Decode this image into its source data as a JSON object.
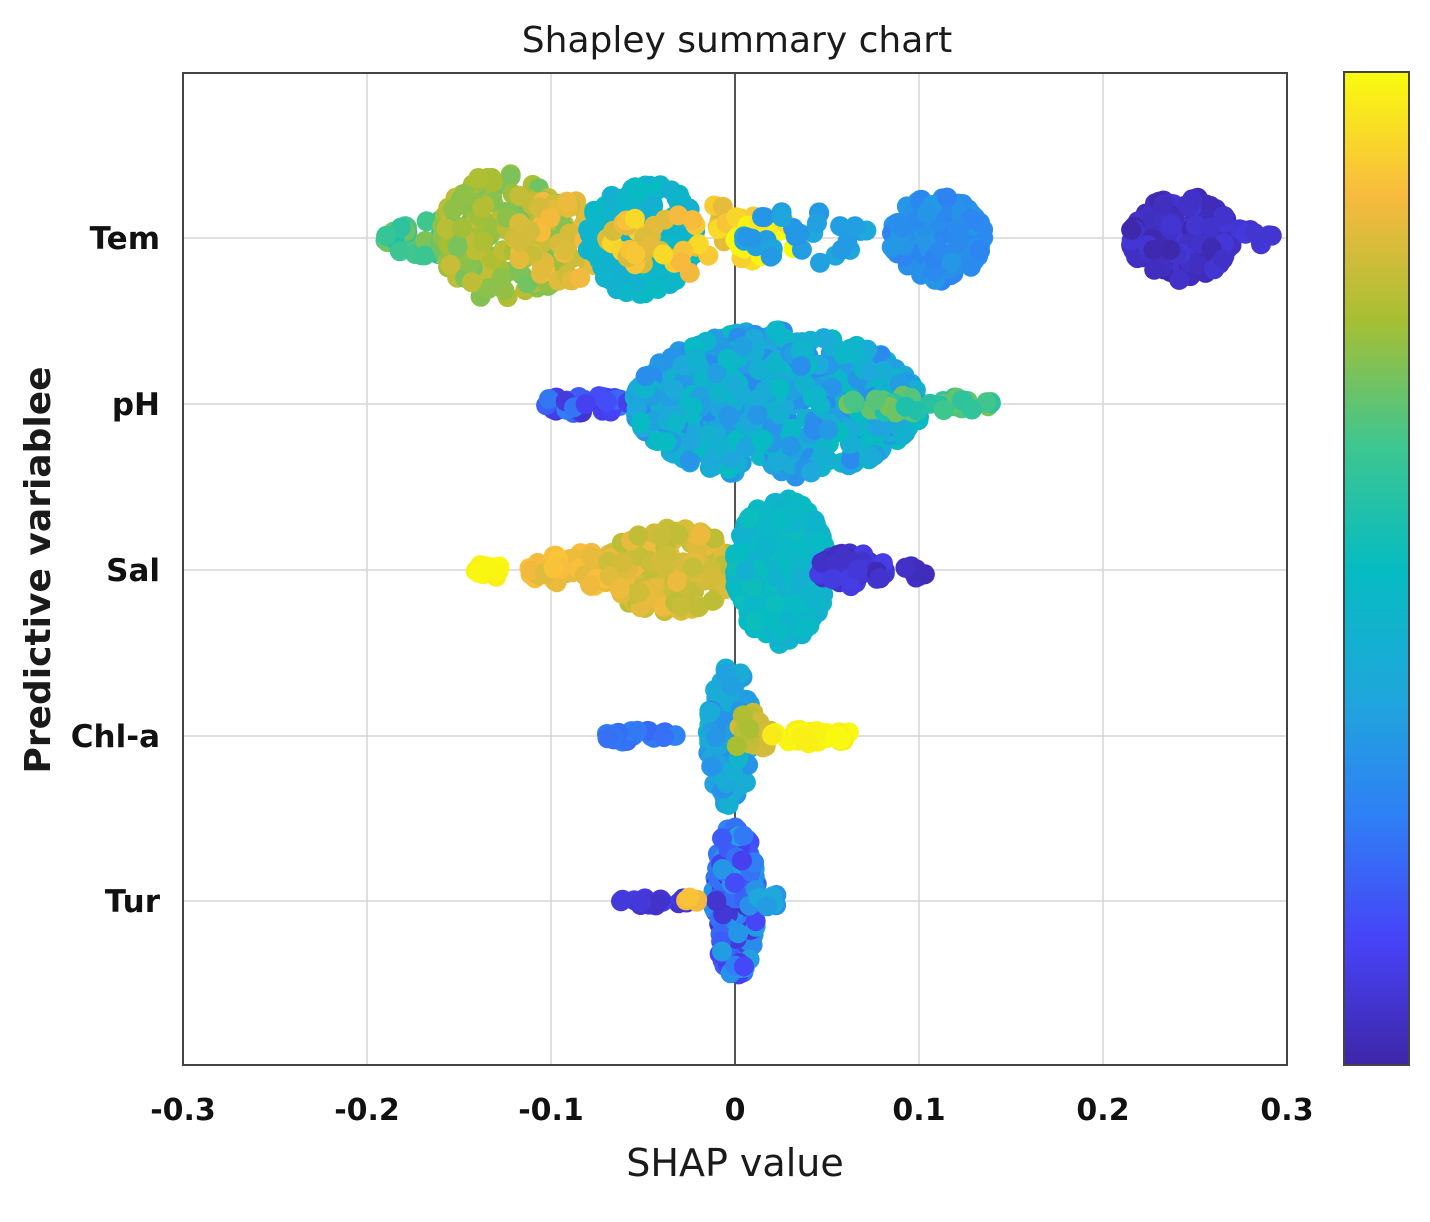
{
  "chart_data": {
    "type": "scatter",
    "subtype": "shap-beeswarm",
    "title": "Shapley summary chart",
    "xlabel": "SHAP value",
    "ylabel": "Predictive variablee",
    "xlim": [
      -0.3,
      0.3
    ],
    "xticks": [
      -0.3,
      -0.2,
      -0.1,
      0,
      0.1,
      0.2,
      0.3
    ],
    "xtick_labels": [
      "-0.3",
      "-0.2",
      "-0.1",
      "0",
      "0.1",
      "0.2",
      "0.3"
    ],
    "grid": true,
    "colorbar": {
      "colormap": "parula",
      "min_color": "#3e26a8",
      "max_color": "#f9fb0e",
      "tick_labels": []
    },
    "categories": [
      "Tem",
      "pH",
      "Sal",
      "Chl-a",
      "Tur"
    ],
    "series": [
      {
        "name": "Tem",
        "clusters": [
          {
            "x": [
              -0.19,
              -0.14
            ],
            "spread": 0.25,
            "n": 40,
            "c": [
              0.55,
              0.72
            ]
          },
          {
            "x": [
              -0.16,
              -0.09
            ],
            "spread": 0.85,
            "n": 190,
            "c": [
              0.68,
              0.8
            ]
          },
          {
            "x": [
              -0.12,
              -0.07
            ],
            "spread": 0.6,
            "n": 60,
            "c": [
              0.8,
              0.88
            ]
          },
          {
            "x": [
              -0.08,
              -0.02
            ],
            "spread": 0.75,
            "n": 170,
            "c": [
              0.42,
              0.5
            ]
          },
          {
            "x": [
              -0.07,
              0.02
            ],
            "spread": 0.45,
            "n": 70,
            "c": [
              0.82,
              0.95
            ]
          },
          {
            "x": [
              0.0,
              0.035
            ],
            "spread": 0.25,
            "n": 30,
            "c": [
              0.95,
              1.0
            ]
          },
          {
            "x": [
              0.0,
              0.075
            ],
            "spread": 0.35,
            "n": 30,
            "c": [
              0.32,
              0.38
            ]
          },
          {
            "x": [
              0.085,
              0.135
            ],
            "spread": 0.55,
            "n": 150,
            "c": [
              0.26,
              0.33
            ]
          },
          {
            "x": [
              0.215,
              0.27
            ],
            "spread": 0.55,
            "n": 150,
            "c": [
              0.0,
              0.08
            ]
          },
          {
            "x": [
              0.27,
              0.292
            ],
            "spread": 0.15,
            "n": 8,
            "c": [
              0.05,
              0.1
            ]
          }
        ]
      },
      {
        "name": "pH",
        "clusters": [
          {
            "x": [
              -0.105,
              -0.055
            ],
            "spread": 0.12,
            "n": 40,
            "c": [
              0.05,
              0.25
            ]
          },
          {
            "x": [
              -0.055,
              0.1
            ],
            "spread": 0.95,
            "n": 700,
            "c": [
              0.28,
              0.5
            ]
          },
          {
            "x": [
              0.06,
              0.14
            ],
            "spread": 0.12,
            "n": 45,
            "c": [
              0.55,
              0.7
            ]
          }
        ]
      },
      {
        "name": "Sal",
        "clusters": [
          {
            "x": [
              -0.142,
              -0.125
            ],
            "spread": 0.1,
            "n": 10,
            "c": [
              0.97,
              1.0
            ]
          },
          {
            "x": [
              -0.112,
              -0.04
            ],
            "spread": 0.25,
            "n": 80,
            "c": [
              0.84,
              0.9
            ]
          },
          {
            "x": [
              -0.07,
              0.0
            ],
            "spread": 0.55,
            "n": 150,
            "c": [
              0.78,
              0.86
            ]
          },
          {
            "x": [
              0.0,
              0.05
            ],
            "spread": 0.95,
            "n": 320,
            "c": [
              0.42,
              0.52
            ]
          },
          {
            "x": [
              0.045,
              0.082
            ],
            "spread": 0.22,
            "n": 50,
            "c": [
              0.02,
              0.1
            ]
          },
          {
            "x": [
              0.092,
              0.105
            ],
            "spread": 0.1,
            "n": 8,
            "c": [
              0.02,
              0.06
            ]
          }
        ]
      },
      {
        "name": "Chl-a",
        "clusters": [
          {
            "x": [
              -0.072,
              -0.03
            ],
            "spread": 0.08,
            "n": 25,
            "c": [
              0.2,
              0.26
            ]
          },
          {
            "x": [
              -0.015,
              0.01
            ],
            "spread": 0.9,
            "n": 170,
            "c": [
              0.3,
              0.45
            ]
          },
          {
            "x": [
              0.0,
              0.02
            ],
            "spread": 0.35,
            "n": 25,
            "c": [
              0.75,
              0.82
            ]
          },
          {
            "x": [
              0.02,
              0.065
            ],
            "spread": 0.1,
            "n": 30,
            "c": [
              0.97,
              1.0
            ]
          }
        ]
      },
      {
        "name": "Tur",
        "clusters": [
          {
            "x": [
              -0.062,
              -0.025
            ],
            "spread": 0.06,
            "n": 25,
            "c": [
              0.05,
              0.1
            ]
          },
          {
            "x": [
              -0.012,
              0.012
            ],
            "spread": 1.0,
            "n": 200,
            "c": [
              0.05,
              0.35
            ]
          },
          {
            "x": [
              -0.03,
              -0.02
            ],
            "spread": 0.05,
            "n": 4,
            "c": [
              0.85,
              0.9
            ]
          },
          {
            "x": [
              0.012,
              0.025
            ],
            "spread": 0.1,
            "n": 8,
            "c": [
              0.3,
              0.4
            ]
          }
        ]
      }
    ]
  }
}
